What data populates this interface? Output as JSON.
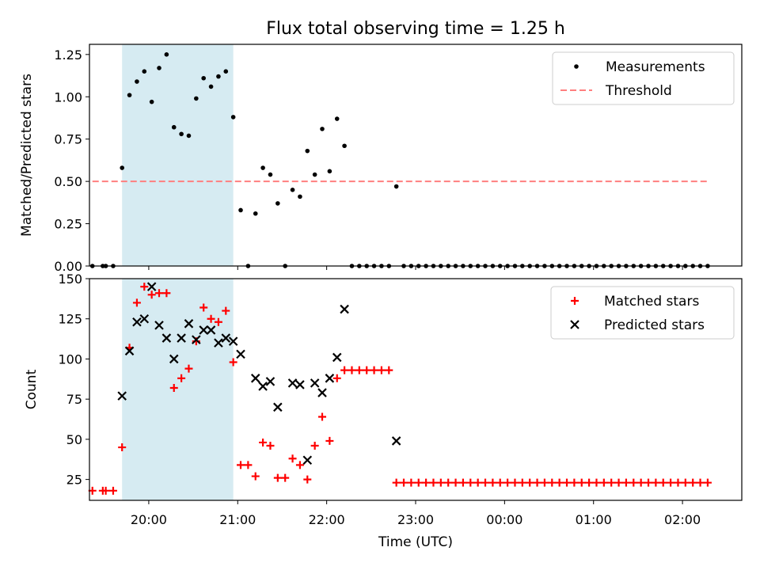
{
  "chart_data": [
    {
      "type": "scatter",
      "title": "Flux total observing time = 1.25 h",
      "xlabel": "",
      "ylabel": "Matched/Predicted stars",
      "xlim": [
        "19:20",
        "02:40"
      ],
      "ylim": [
        0,
        1.31
      ],
      "yticks": [
        0.0,
        0.25,
        0.5,
        0.75,
        1.0,
        1.25
      ],
      "yticklabels": [
        "0.00",
        "0.25",
        "0.50",
        "0.75",
        "1.00",
        "1.25"
      ],
      "xticks": [
        "20:00",
        "21:00",
        "22:00",
        "23:00",
        "00:00",
        "01:00",
        "02:00"
      ],
      "xticklabels": [
        "",
        "",
        "",
        "",
        "",
        "",
        ""
      ],
      "highlight_span": {
        "x0": "19:42",
        "x1": "20:57",
        "color": "#add8e6"
      },
      "legend": {
        "position": "top-right",
        "entries": [
          "Measurements",
          "Threshold"
        ]
      },
      "series": [
        {
          "name": "Measurements",
          "marker": "dot",
          "color": "#000000",
          "x": [
            "19:22",
            "19:29",
            "19:31",
            "19:36",
            "19:42",
            "19:47",
            "19:52",
            "19:57",
            "20:02",
            "20:07",
            "20:12",
            "20:17",
            "20:22",
            "20:27",
            "20:32",
            "20:37",
            "20:42",
            "20:47",
            "20:52",
            "20:57",
            "21:02",
            "21:07",
            "21:12",
            "21:17",
            "21:22",
            "21:27",
            "21:32",
            "21:37",
            "21:42",
            "21:47",
            "21:52",
            "21:57",
            "22:02",
            "22:07",
            "22:12",
            "22:17",
            "22:22",
            "22:27",
            "22:32",
            "22:37",
            "22:42",
            "22:47",
            "22:52",
            "22:57",
            "23:02",
            "23:07",
            "23:12",
            "23:17",
            "23:22",
            "23:27",
            "23:32",
            "23:37",
            "23:42",
            "23:47",
            "23:52",
            "23:57",
            "00:02",
            "00:07",
            "00:12",
            "00:17",
            "00:22",
            "00:27",
            "00:32",
            "00:37",
            "00:42",
            "00:47",
            "00:52",
            "00:57",
            "01:02",
            "01:07",
            "01:12",
            "01:17",
            "01:22",
            "01:27",
            "01:32",
            "01:37",
            "01:42",
            "01:47",
            "01:52",
            "01:57",
            "02:02",
            "02:07",
            "02:12",
            "02:17"
          ],
          "y": [
            0,
            0,
            0,
            0,
            0.58,
            1.01,
            1.09,
            1.15,
            0.97,
            1.17,
            1.25,
            0.82,
            0.78,
            0.77,
            0.99,
            1.11,
            1.06,
            1.12,
            1.15,
            0.88,
            0.33,
            0,
            0.31,
            0.58,
            0.54,
            0.37,
            0,
            0.45,
            0.41,
            0.68,
            0.54,
            0.81,
            0.56,
            0.87,
            0.71,
            0,
            0,
            0,
            0,
            0,
            0,
            0.47,
            0,
            0,
            0,
            0,
            0,
            0,
            0,
            0,
            0,
            0,
            0,
            0,
            0,
            0,
            0,
            0,
            0,
            0,
            0,
            0,
            0,
            0,
            0,
            0,
            0,
            0,
            0,
            0,
            0,
            0,
            0,
            0,
            0,
            0,
            0,
            0,
            0,
            0,
            0,
            0,
            0,
            0
          ]
        },
        {
          "name": "Threshold",
          "marker": "dashed-line",
          "color": "#ff7f7f",
          "x": [
            "19:22",
            "02:17"
          ],
          "y": [
            0.5,
            0.5
          ]
        }
      ]
    },
    {
      "type": "scatter",
      "title": "",
      "xlabel": "Time (UTC)",
      "ylabel": "Count",
      "xlim": [
        "19:20",
        "02:40"
      ],
      "ylim": [
        12,
        150
      ],
      "yticks": [
        25,
        50,
        75,
        100,
        125,
        150
      ],
      "yticklabels": [
        "25",
        "50",
        "75",
        "100",
        "125",
        "150"
      ],
      "xticks": [
        "20:00",
        "21:00",
        "22:00",
        "23:00",
        "00:00",
        "01:00",
        "02:00"
      ],
      "xticklabels": [
        "20:00",
        "21:00",
        "22:00",
        "23:00",
        "00:00",
        "01:00",
        "02:00"
      ],
      "highlight_span": {
        "x0": "19:42",
        "x1": "20:57",
        "color": "#add8e6"
      },
      "legend": {
        "position": "top-right",
        "entries": [
          "Matched stars",
          "Predicted stars"
        ]
      },
      "series": [
        {
          "name": "Matched stars",
          "marker": "plus",
          "color": "#ff0000",
          "x": [
            "19:22",
            "19:29",
            "19:31",
            "19:36",
            "19:42",
            "19:47",
            "19:52",
            "19:57",
            "20:02",
            "20:07",
            "20:12",
            "20:17",
            "20:22",
            "20:27",
            "20:32",
            "20:37",
            "20:42",
            "20:47",
            "20:52",
            "20:57",
            "21:02",
            "21:07",
            "21:12",
            "21:17",
            "21:22",
            "21:27",
            "21:32",
            "21:37",
            "21:42",
            "21:47",
            "21:52",
            "21:57",
            "22:02",
            "22:07",
            "22:12",
            "22:17",
            "22:22",
            "22:27",
            "22:32",
            "22:37",
            "22:42",
            "22:47",
            "22:52",
            "22:57",
            "23:02",
            "23:07",
            "23:12",
            "23:17",
            "23:22",
            "23:27",
            "23:32",
            "23:37",
            "23:42",
            "23:47",
            "23:52",
            "23:57",
            "00:02",
            "00:07",
            "00:12",
            "00:17",
            "00:22",
            "00:27",
            "00:32",
            "00:37",
            "00:42",
            "00:47",
            "00:52",
            "00:57",
            "01:02",
            "01:07",
            "01:12",
            "01:17",
            "01:22",
            "01:27",
            "01:32",
            "01:37",
            "01:42",
            "01:47",
            "01:52",
            "01:57",
            "02:02",
            "02:07",
            "02:12",
            "02:17"
          ],
          "y": [
            18,
            18,
            18,
            18,
            45,
            107,
            135,
            145,
            140,
            141,
            141,
            82,
            88,
            94,
            111,
            132,
            125,
            123,
            130,
            98,
            34,
            34,
            27,
            48,
            46,
            26,
            26,
            38,
            34,
            25,
            46,
            64,
            49,
            88,
            93,
            93,
            93,
            93,
            93,
            93,
            93,
            23,
            23,
            23,
            23,
            23,
            23,
            23,
            23,
            23,
            23,
            23,
            23,
            23,
            23,
            23,
            23,
            23,
            23,
            23,
            23,
            23,
            23,
            23,
            23,
            23,
            23,
            23,
            23,
            23,
            23,
            23,
            23,
            23,
            23,
            23,
            23,
            23,
            23,
            23,
            23,
            23,
            23,
            23
          ]
        },
        {
          "name": "Predicted stars",
          "marker": "x",
          "color": "#000000",
          "x": [
            "19:42",
            "19:47",
            "19:52",
            "19:57",
            "20:02",
            "20:07",
            "20:12",
            "20:17",
            "20:22",
            "20:27",
            "20:32",
            "20:37",
            "20:42",
            "20:47",
            "20:52",
            "20:57",
            "21:02",
            "21:12",
            "21:17",
            "21:22",
            "21:27",
            "21:37",
            "21:42",
            "21:47",
            "21:52",
            "21:57",
            "22:02",
            "22:07",
            "22:12",
            "22:47"
          ],
          "y": [
            77,
            105,
            123,
            125,
            145,
            121,
            113,
            100,
            113,
            122,
            112,
            118,
            118,
            110,
            113,
            111,
            103,
            88,
            83,
            86,
            70,
            85,
            84,
            37,
            85,
            79,
            88,
            101,
            131,
            49
          ]
        }
      ]
    }
  ]
}
